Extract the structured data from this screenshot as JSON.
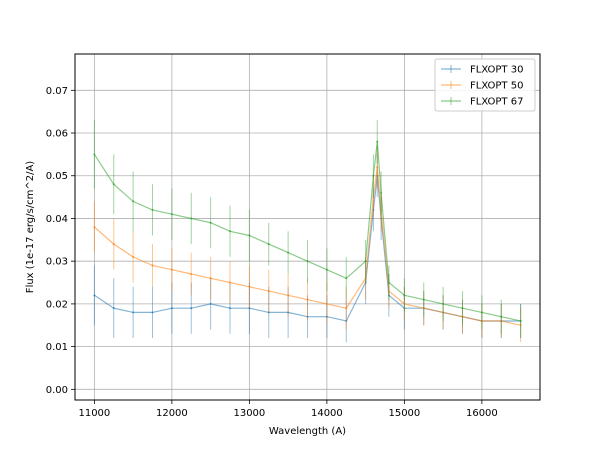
{
  "chart_data": {
    "type": "line",
    "title": "",
    "xlabel": "Wavelength (A)",
    "ylabel": "Flux (1e-17 erg/s/cm^2/A)",
    "xlim": [
      10750,
      16750
    ],
    "ylim": [
      -0.0025,
      0.0785
    ],
    "xticks": [
      11000,
      12000,
      13000,
      14000,
      15000,
      16000
    ],
    "xtick_labels": [
      "11000",
      "12000",
      "13000",
      "14000",
      "15000",
      "16000"
    ],
    "yticks": [
      0.0,
      0.01,
      0.02,
      0.03,
      0.04,
      0.05,
      0.06,
      0.07
    ],
    "ytick_labels": [
      "0.00",
      "0.01",
      "0.02",
      "0.03",
      "0.04",
      "0.05",
      "0.06",
      "0.07"
    ],
    "grid": true,
    "legend_position": "top-right",
    "series": [
      {
        "name": "FLXOPT 30",
        "color": "#1f77b4",
        "x": [
          11000,
          11250,
          11500,
          11750,
          12000,
          12250,
          12500,
          12750,
          13000,
          13250,
          13500,
          13750,
          14000,
          14250,
          14500,
          14600,
          14650,
          14700,
          14800,
          15000,
          15250,
          15500,
          15750,
          16000,
          16250,
          16500
        ],
        "y": [
          0.022,
          0.019,
          0.018,
          0.018,
          0.019,
          0.019,
          0.02,
          0.019,
          0.019,
          0.018,
          0.018,
          0.017,
          0.017,
          0.016,
          0.025,
          0.042,
          0.05,
          0.04,
          0.022,
          0.019,
          0.019,
          0.018,
          0.017,
          0.016,
          0.016,
          0.016
        ],
        "err": [
          0.007,
          0.007,
          0.006,
          0.006,
          0.006,
          0.006,
          0.006,
          0.006,
          0.006,
          0.006,
          0.006,
          0.005,
          0.005,
          0.005,
          0.005,
          0.005,
          0.005,
          0.005,
          0.005,
          0.005,
          0.004,
          0.004,
          0.004,
          0.004,
          0.004,
          0.004
        ]
      },
      {
        "name": "FLXOPT 50",
        "color": "#ff7f0e",
        "x": [
          11000,
          11250,
          11500,
          11750,
          12000,
          12250,
          12500,
          12750,
          13000,
          13250,
          13500,
          13750,
          14000,
          14250,
          14500,
          14600,
          14650,
          14700,
          14800,
          15000,
          15250,
          15500,
          15750,
          16000,
          16250,
          16500
        ],
        "y": [
          0.038,
          0.034,
          0.031,
          0.029,
          0.028,
          0.027,
          0.026,
          0.025,
          0.024,
          0.023,
          0.022,
          0.021,
          0.02,
          0.019,
          0.026,
          0.045,
          0.052,
          0.042,
          0.023,
          0.02,
          0.019,
          0.018,
          0.017,
          0.016,
          0.016,
          0.015
        ],
        "err": [
          0.006,
          0.006,
          0.006,
          0.005,
          0.005,
          0.005,
          0.005,
          0.005,
          0.005,
          0.005,
          0.005,
          0.005,
          0.005,
          0.005,
          0.005,
          0.005,
          0.005,
          0.005,
          0.004,
          0.004,
          0.004,
          0.004,
          0.004,
          0.004,
          0.004,
          0.004
        ]
      },
      {
        "name": "FLXOPT 67",
        "color": "#2ca02c",
        "x": [
          11000,
          11250,
          11500,
          11750,
          12000,
          12250,
          12500,
          12750,
          13000,
          13250,
          13500,
          13750,
          14000,
          14250,
          14500,
          14600,
          14650,
          14700,
          14800,
          15000,
          15250,
          15500,
          15750,
          16000,
          16250,
          16500
        ],
        "y": [
          0.055,
          0.048,
          0.044,
          0.042,
          0.041,
          0.04,
          0.039,
          0.037,
          0.036,
          0.034,
          0.032,
          0.03,
          0.028,
          0.026,
          0.03,
          0.05,
          0.058,
          0.046,
          0.025,
          0.022,
          0.021,
          0.02,
          0.019,
          0.018,
          0.017,
          0.016
        ],
        "err": [
          0.008,
          0.007,
          0.007,
          0.006,
          0.006,
          0.006,
          0.006,
          0.006,
          0.006,
          0.005,
          0.005,
          0.005,
          0.005,
          0.005,
          0.005,
          0.005,
          0.005,
          0.005,
          0.004,
          0.004,
          0.004,
          0.004,
          0.004,
          0.004,
          0.004,
          0.004
        ]
      }
    ]
  }
}
